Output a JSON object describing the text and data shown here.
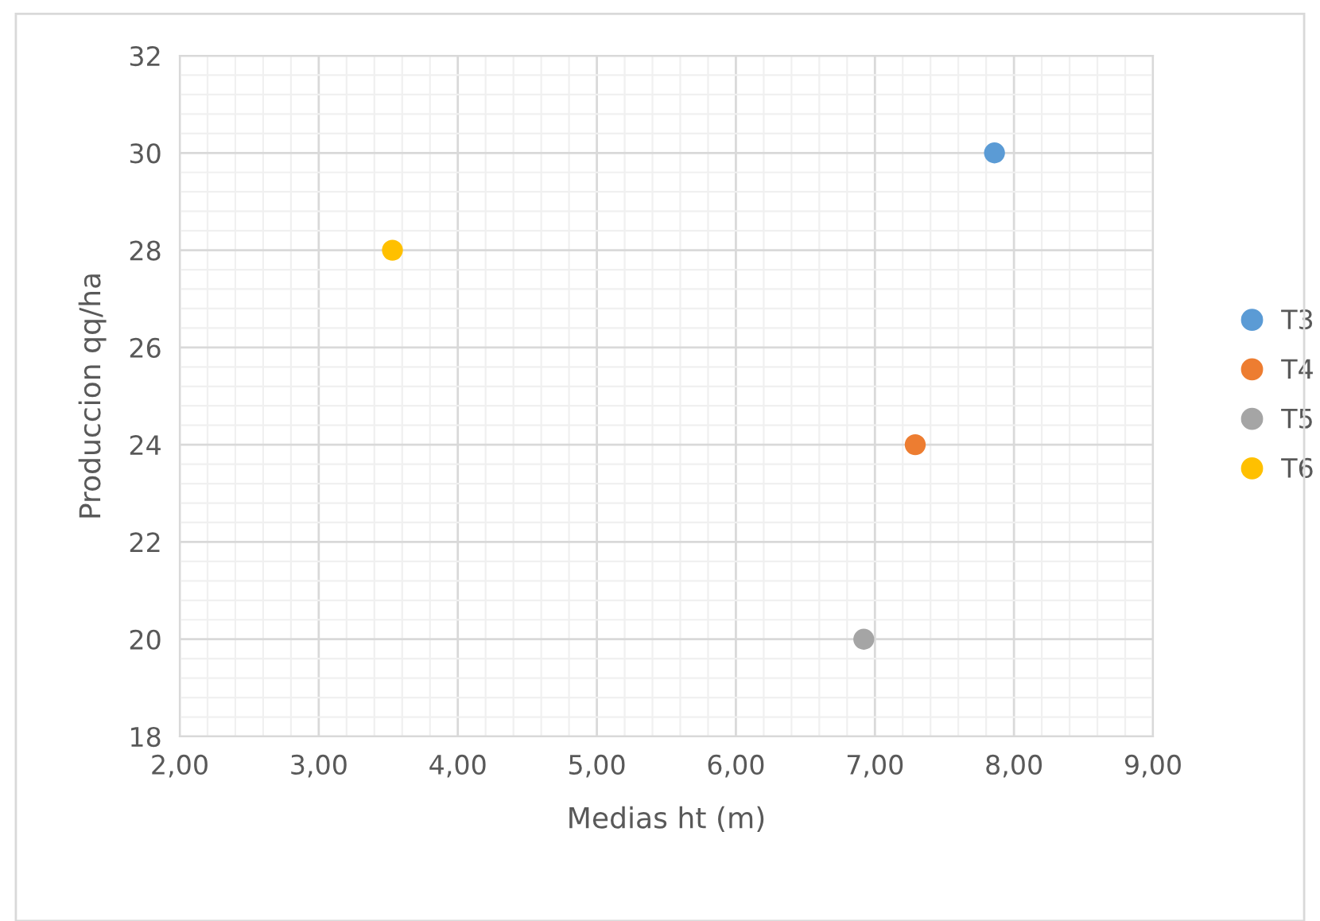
{
  "chart_data": {
    "type": "scatter",
    "xlabel": "Medias ht (m)",
    "ylabel": "Produccion qq/ha",
    "series": [
      {
        "name": "T3",
        "color": "#5b9bd5",
        "x": [
          7.86
        ],
        "values": [
          30
        ]
      },
      {
        "name": "T4",
        "color": "#ed7d31",
        "x": [
          7.29
        ],
        "values": [
          24
        ]
      },
      {
        "name": "T5",
        "color": "#a5a5a5",
        "x": [
          6.92
        ],
        "values": [
          20
        ]
      },
      {
        "name": "T6",
        "color": "#ffc000",
        "x": [
          3.53
        ],
        "values": [
          28
        ]
      }
    ],
    "xlim": [
      2,
      9
    ],
    "xticks": [
      {
        "value": 2,
        "label": "2,00"
      },
      {
        "value": 3,
        "label": "3,00"
      },
      {
        "value": 4,
        "label": "4,00"
      },
      {
        "value": 5,
        "label": "5,00"
      },
      {
        "value": 6,
        "label": "6,00"
      },
      {
        "value": 7,
        "label": "7,00"
      },
      {
        "value": 8,
        "label": "8,00"
      },
      {
        "value": 9,
        "label": "9,00"
      }
    ],
    "ylim": [
      18,
      32
    ],
    "yticks": [
      18,
      20,
      22,
      24,
      26,
      28,
      30,
      32
    ],
    "grid": true,
    "legend": "right",
    "marker": "circle"
  }
}
